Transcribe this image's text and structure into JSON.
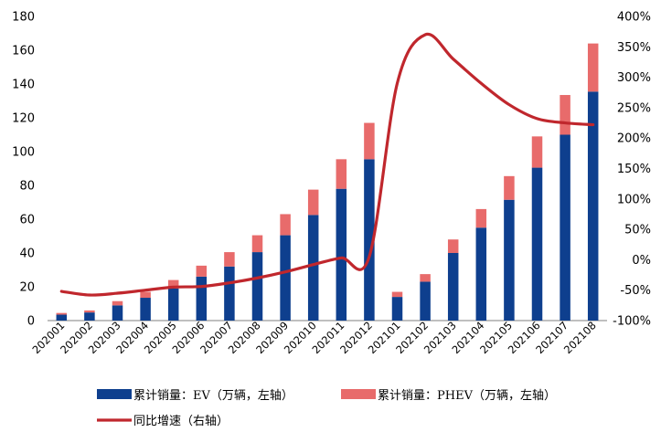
{
  "chart_data": {
    "type": "bar",
    "stacked": true,
    "categories": [
      "202001",
      "202002",
      "202003",
      "202004",
      "202005",
      "202006",
      "202007",
      "202008",
      "202009",
      "202010",
      "202011",
      "202012",
      "202101",
      "202102",
      "202103",
      "202104",
      "202105",
      "202106",
      "202107",
      "202108"
    ],
    "series": [
      {
        "name": "累计销量：EV（万辆，左轴）",
        "type": "bar",
        "axis": "left",
        "color": "#0e3f8e",
        "values": [
          3.5,
          4.8,
          9.0,
          13.5,
          19.0,
          26.0,
          32.0,
          40.5,
          50.5,
          62.5,
          78.0,
          95.5,
          14.0,
          23.0,
          40.0,
          55.0,
          71.5,
          90.5,
          110.0,
          135.5
        ]
      },
      {
        "name": "累计销量：PHEV（万辆，左轴）",
        "type": "bar",
        "axis": "left",
        "color": "#e86b6b",
        "values": [
          1.0,
          1.2,
          2.5,
          3.5,
          5.0,
          6.5,
          8.5,
          10.0,
          12.5,
          15.0,
          17.5,
          21.5,
          3.0,
          4.5,
          8.0,
          11.0,
          14.0,
          18.5,
          23.5,
          28.5
        ]
      },
      {
        "name": "同比增速（右轴）",
        "type": "line",
        "axis": "right",
        "color": "#c0272d",
        "values": [
          -52,
          -58,
          -55,
          -50,
          -45,
          -44,
          -38,
          -30,
          -20,
          -8,
          3,
          5,
          290,
          370,
          330,
          290,
          255,
          232,
          225,
          222
        ]
      }
    ],
    "left_axis": {
      "ylim": [
        0,
        180
      ],
      "ticks": [
        "0",
        "20",
        "40",
        "60",
        "80",
        "100",
        "120",
        "140",
        "160",
        "180"
      ]
    },
    "right_axis": {
      "ylim": [
        -100,
        400
      ],
      "ticks": [
        "-100%",
        "-50%",
        "0%",
        "50%",
        "100%",
        "150%",
        "200%",
        "250%",
        "300%",
        "350%",
        "400%"
      ]
    },
    "legend": {
      "placement": "bottom",
      "items": [
        {
          "label": "累计销量：EV（万辆，左轴）",
          "color": "#0e3f8e",
          "kind": "bar"
        },
        {
          "label": "累计销量：PHEV（万辆，左轴）",
          "color": "#e86b6b",
          "kind": "bar"
        },
        {
          "label": "同比增速（右轴）",
          "color": "#c0272d",
          "kind": "line"
        }
      ]
    },
    "grid": false
  }
}
